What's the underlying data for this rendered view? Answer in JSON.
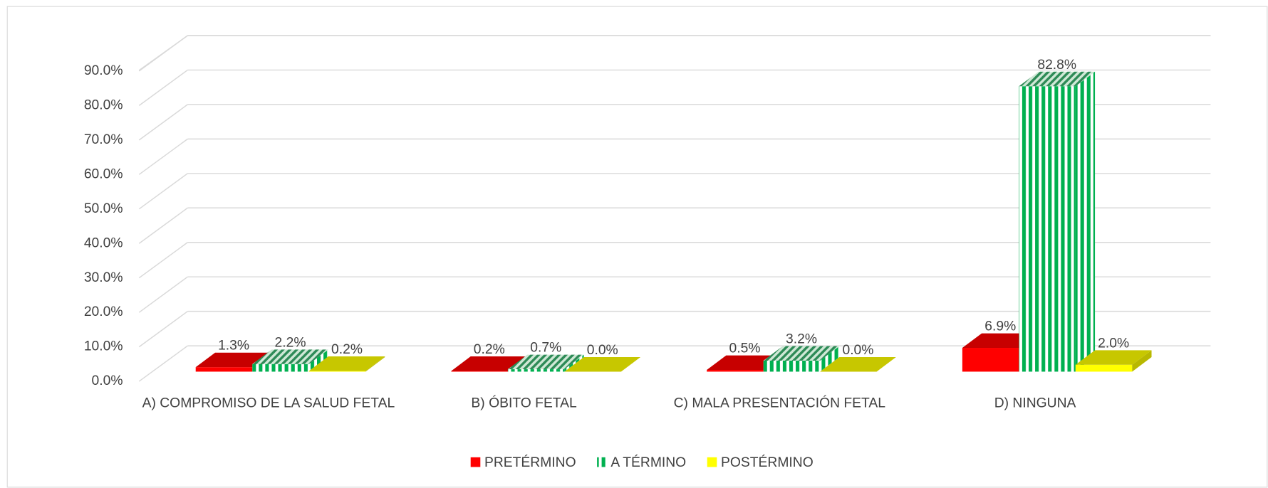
{
  "chart_data": {
    "type": "bar3d",
    "categories": [
      "A) COMPROMISO DE LA SALUD FETAL",
      "B) ÓBITO FETAL",
      "C) MALA PRESENTACIÓN FETAL",
      "D) NINGUNA"
    ],
    "series": [
      {
        "name": "PRETÉRMINO",
        "color": "#ff0000",
        "values": [
          1.3,
          0.2,
          0.5,
          6.9
        ],
        "value_labels": [
          "1.3%",
          "0.2%",
          "0.5%",
          "6.9%"
        ]
      },
      {
        "name": "A TÉRMINO",
        "color": "#00b050",
        "values": [
          2.2,
          0.7,
          3.2,
          82.8
        ],
        "value_labels": [
          "2.2%",
          "0.7%",
          "3.2%",
          "82.8%"
        ]
      },
      {
        "name": "POSTÉRMINO",
        "color": "#ffff00",
        "values": [
          0.2,
          0.0,
          0.0,
          2.0
        ],
        "value_labels": [
          "0.2%",
          "0.0%",
          "0.0%",
          "2.0%"
        ]
      }
    ],
    "ylim": [
      0,
      90
    ],
    "yticks": [
      {
        "value": 0,
        "label": "0.0%"
      },
      {
        "value": 10,
        "label": "10.0%"
      },
      {
        "value": 20,
        "label": "20.0%"
      },
      {
        "value": 30,
        "label": "30.0%"
      },
      {
        "value": 40,
        "label": "40.0%"
      },
      {
        "value": 50,
        "label": "50.0%"
      },
      {
        "value": 60,
        "label": "60.0%"
      },
      {
        "value": 70,
        "label": "70.0%"
      },
      {
        "value": 80,
        "label": "80.0%"
      },
      {
        "value": 90,
        "label": "90.0%"
      }
    ],
    "grid": true,
    "legend": "bottom"
  }
}
